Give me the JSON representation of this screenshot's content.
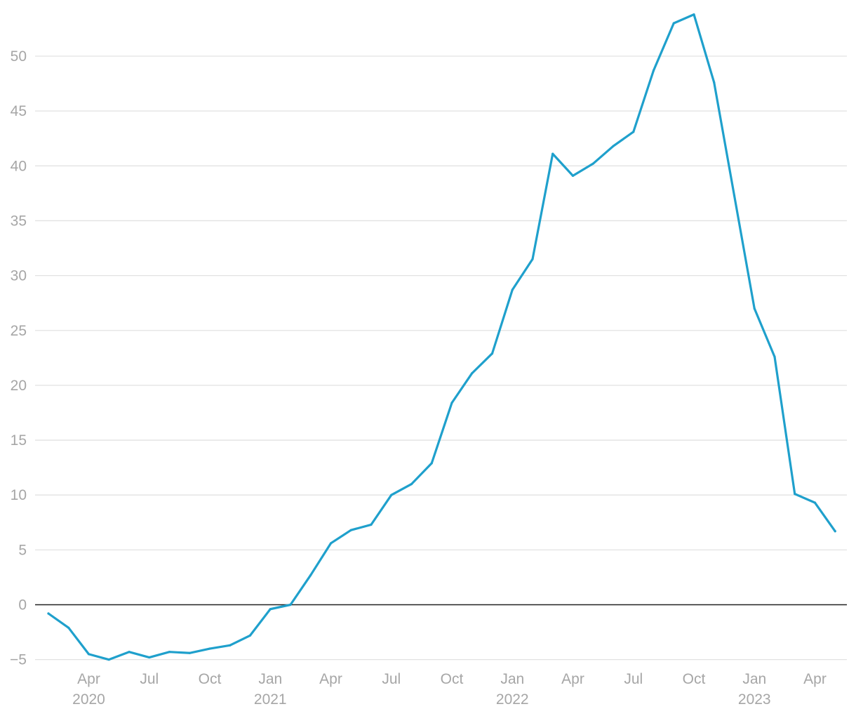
{
  "chart_data": {
    "type": "line",
    "title": "",
    "xlabel": "",
    "ylabel": "",
    "ylim": [
      -5,
      54
    ],
    "y_ticks": [
      -5,
      0,
      5,
      10,
      15,
      20,
      25,
      30,
      35,
      40,
      45,
      50
    ],
    "y_tick_labels": [
      "−5",
      "0",
      "5",
      "10",
      "15",
      "20",
      "25",
      "30",
      "35",
      "40",
      "45",
      "50"
    ],
    "x_ticks": [
      {
        "date": "2020-04",
        "label": "Apr",
        "year_label": "2020"
      },
      {
        "date": "2020-07",
        "label": "Jul",
        "year_label": ""
      },
      {
        "date": "2020-10",
        "label": "Oct",
        "year_label": ""
      },
      {
        "date": "2021-01",
        "label": "Jan",
        "year_label": "2021"
      },
      {
        "date": "2021-04",
        "label": "Apr",
        "year_label": ""
      },
      {
        "date": "2021-07",
        "label": "Jul",
        "year_label": ""
      },
      {
        "date": "2021-10",
        "label": "Oct",
        "year_label": ""
      },
      {
        "date": "2022-01",
        "label": "Jan",
        "year_label": "2022"
      },
      {
        "date": "2022-04",
        "label": "Apr",
        "year_label": ""
      },
      {
        "date": "2022-07",
        "label": "Jul",
        "year_label": ""
      },
      {
        "date": "2022-10",
        "label": "Oct",
        "year_label": ""
      },
      {
        "date": "2023-01",
        "label": "Jan",
        "year_label": "2023"
      },
      {
        "date": "2023-04",
        "label": "Apr",
        "year_label": ""
      }
    ],
    "grid": true,
    "zero_line": true,
    "series": [
      {
        "color": "#1fa0cc",
        "x": [
          "2020-02",
          "2020-03",
          "2020-04",
          "2020-05",
          "2020-06",
          "2020-07",
          "2020-08",
          "2020-09",
          "2020-10",
          "2020-11",
          "2020-12",
          "2021-01",
          "2021-02",
          "2021-03",
          "2021-04",
          "2021-05",
          "2021-06",
          "2021-07",
          "2021-08",
          "2021-09",
          "2021-10",
          "2021-11",
          "2021-12",
          "2022-01",
          "2022-02",
          "2022-03",
          "2022-04",
          "2022-05",
          "2022-06",
          "2022-07",
          "2022-08",
          "2022-09",
          "2022-10",
          "2022-11",
          "2022-12",
          "2023-01",
          "2023-02",
          "2023-03",
          "2023-04",
          "2023-05"
        ],
        "values": [
          -0.8,
          -2.1,
          -4.5,
          -5.0,
          -4.3,
          -4.8,
          -4.3,
          -4.4,
          -4.0,
          -3.7,
          -2.8,
          -0.4,
          0.0,
          2.7,
          5.6,
          6.8,
          7.3,
          10.0,
          11.0,
          12.9,
          18.4,
          21.1,
          22.9,
          28.7,
          31.5,
          41.1,
          39.1,
          40.2,
          41.8,
          43.1,
          48.7,
          53.0,
          53.8,
          47.6,
          37.3,
          27.0,
          22.6,
          10.1,
          9.3,
          6.7
        ]
      }
    ]
  }
}
